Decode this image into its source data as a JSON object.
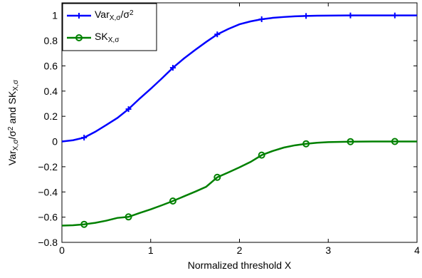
{
  "chart_data": {
    "type": "line",
    "xlabel": "Normalized threshold X",
    "ylabel": {
      "parts": [
        {
          "t": "Var",
          "s": "normal"
        },
        {
          "t": "X,σ",
          "s": "sub"
        },
        {
          "t": "/σ",
          "s": "normal"
        },
        {
          "t": "2",
          "s": "sup"
        },
        {
          "t": " and SK",
          "s": "normal"
        },
        {
          "t": "X,σ",
          "s": "sub"
        }
      ]
    },
    "xlim": [
      0,
      4
    ],
    "ylim": [
      -0.8,
      1.1
    ],
    "xticks": [
      0,
      1,
      2,
      3,
      4
    ],
    "xtick_labels": [
      "0",
      "1",
      "2",
      "3",
      "4"
    ],
    "yticks": [
      -0.8,
      -0.6,
      -0.4,
      -0.2,
      0,
      0.2,
      0.4,
      0.6,
      0.8,
      1
    ],
    "ytick_labels": [
      "−0.8",
      "−0.6",
      "−0.4",
      "−0.2",
      "0",
      "0.2",
      "0.4",
      "0.6",
      "0.8",
      "1"
    ],
    "grid": false,
    "legend_position": "top-left",
    "series": [
      {
        "name_parts": [
          {
            "t": "Var",
            "s": "normal"
          },
          {
            "t": "X,σ",
            "s": "sub"
          },
          {
            "t": "/σ",
            "s": "normal"
          },
          {
            "t": "2",
            "s": "sup"
          }
        ],
        "color": "#0000ff",
        "marker": "plus",
        "x": [
          0,
          0.125,
          0.25,
          0.375,
          0.5,
          0.625,
          0.75,
          0.875,
          1.0,
          1.125,
          1.25,
          1.375,
          1.5,
          1.625,
          1.75,
          1.875,
          2.0,
          2.125,
          2.25,
          2.375,
          2.5,
          2.625,
          2.75,
          2.875,
          3.0,
          3.25,
          3.5,
          3.75,
          4.0
        ],
        "y": [
          0,
          0.01,
          0.031,
          0.077,
          0.131,
          0.187,
          0.257,
          0.34,
          0.418,
          0.5,
          0.585,
          0.659,
          0.726,
          0.79,
          0.85,
          0.893,
          0.93,
          0.953,
          0.97,
          0.981,
          0.988,
          0.993,
          0.996,
          0.998,
          0.999,
          1.0,
          1.0,
          1.0,
          1.0
        ],
        "marker_x": [
          0.25,
          0.75,
          1.25,
          1.75,
          2.25,
          2.75,
          3.25,
          3.75
        ],
        "marker_y": [
          0.031,
          0.257,
          0.585,
          0.85,
          0.97,
          0.996,
          1.0,
          1.0
        ]
      },
      {
        "name_parts": [
          {
            "t": "SK",
            "s": "normal"
          },
          {
            "t": "X,σ",
            "s": "sub"
          }
        ],
        "color": "#008000",
        "marker": "circle",
        "x": [
          0,
          0.125,
          0.25,
          0.375,
          0.5,
          0.625,
          0.75,
          0.875,
          1.0,
          1.125,
          1.25,
          1.375,
          1.5,
          1.625,
          1.75,
          1.875,
          2.0,
          2.125,
          2.25,
          2.375,
          2.5,
          2.625,
          2.75,
          2.875,
          3.0,
          3.25,
          3.5,
          3.75,
          4.0
        ],
        "y": [
          -0.667,
          -0.664,
          -0.657,
          -0.645,
          -0.628,
          -0.606,
          -0.598,
          -0.567,
          -0.538,
          -0.506,
          -0.472,
          -0.435,
          -0.398,
          -0.359,
          -0.284,
          -0.245,
          -0.205,
          -0.162,
          -0.108,
          -0.075,
          -0.048,
          -0.03,
          -0.018,
          -0.01,
          -0.005,
          -0.001,
          0.0,
          0.0,
          0.0
        ],
        "marker_x": [
          0.25,
          0.75,
          1.25,
          1.75,
          2.25,
          2.75,
          3.25,
          3.75
        ],
        "marker_y": [
          -0.657,
          -0.598,
          -0.472,
          -0.284,
          -0.108,
          -0.018,
          -0.001,
          0.0
        ]
      }
    ]
  }
}
